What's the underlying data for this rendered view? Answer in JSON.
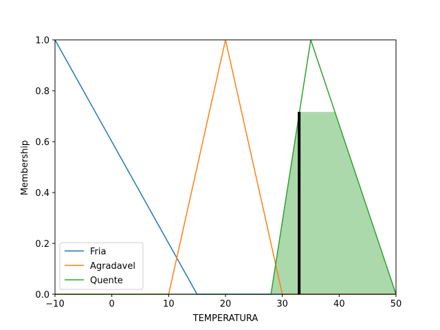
{
  "chart_data": {
    "type": "line",
    "xlabel": "TEMPERATURA",
    "ylabel": "Membership",
    "xlim": [
      -10,
      50
    ],
    "ylim": [
      0,
      1.0
    ],
    "xticks": [
      -10,
      0,
      10,
      20,
      30,
      40,
      50
    ],
    "yticks": [
      0.0,
      0.2,
      0.4,
      0.6,
      0.8,
      1.0
    ],
    "xtick_labels": [
      "−10",
      "0",
      "10",
      "20",
      "30",
      "40",
      "50"
    ],
    "ytick_labels": [
      "0.0",
      "0.2",
      "0.4",
      "0.6",
      "0.8",
      "1.0"
    ],
    "grid": false,
    "legend_position": "lower-left",
    "series": [
      {
        "name": "Fria",
        "color": "#1f77b4",
        "x": [
          -10,
          15,
          50
        ],
        "y": [
          1.0,
          0.0,
          0.0
        ]
      },
      {
        "name": "Agradavel",
        "color": "#ff7f0e",
        "x": [
          -10,
          10,
          20,
          30,
          50
        ],
        "y": [
          0.0,
          0.0,
          1.0,
          0.0,
          0.0
        ]
      },
      {
        "name": "Quente",
        "color": "#2ca02c",
        "x": [
          -10,
          28,
          35,
          50
        ],
        "y": [
          0.0,
          0.0,
          1.0,
          0.0
        ]
      }
    ],
    "activation": {
      "color": "#2ca02c",
      "x": [
        -10,
        28,
        32.96,
        39.2,
        50
      ],
      "y": [
        0.0,
        0.0,
        0.717,
        0.717,
        0.0
      ]
    },
    "defuzzified_value": {
      "x": 32.96,
      "y": 0.717,
      "color": "#000000"
    }
  }
}
